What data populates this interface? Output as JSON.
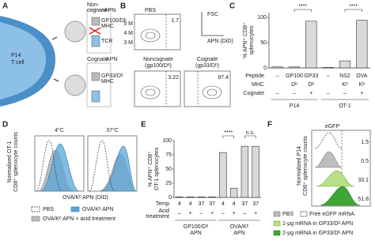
{
  "panel_labels": {
    "a": "A",
    "b": "B",
    "c": "C",
    "d": "D",
    "e": "E",
    "f": "F"
  },
  "panel_a": {
    "cell": [
      "P14",
      "T cell"
    ],
    "noncognate": [
      "Non-",
      "cognate",
      "APN"
    ],
    "gp100": "GP100/Dᵇ",
    "mhc_top": "MHC",
    "tcr": "TCR",
    "cognate": [
      "Cognate",
      "APN"
    ],
    "gp33": "GP33/Dᵇ",
    "mhc_bottom": "MHC"
  },
  "panel_b": {
    "pbs": "PBS",
    "pbs_gate": 1.7,
    "fsc": "FSC",
    "apn": "APN (DiD)",
    "yticks": [
      "5 M",
      "4 M",
      "3 M"
    ],
    "noncognate": [
      "Noncognate",
      "(gp100/Dᵇ)"
    ],
    "noncognate_gate": 3.22,
    "cognate": [
      "Cognate",
      "(gp33/Dᵇ)"
    ],
    "cognate_gate": 97.4
  },
  "panel_d": {
    "ylabel": [
      "Normalized OT-1",
      "CD8⁺ splenocyte counts"
    ],
    "xlabel": "OVA/Kᵇ APN (DiD)",
    "titles": [
      "4°C",
      "37°C"
    ],
    "legend": [
      "PBS",
      "OVA/Kᵇ APN",
      "OVA/Kᵇ APN + acid treatment"
    ]
  },
  "panel_f": {
    "ylabel": [
      "Normalized P14",
      "CD8⁺ splenocyte counts"
    ],
    "xlabel": "eGFP",
    "gates": [
      1.5,
      0.5,
      33.1,
      51.8
    ],
    "legend": [
      "PBS",
      "Free eGFP mRNA",
      "1-μg mRNA in GP33/Dᵇ APN",
      "2-μg mRNA in GP33/Dᵇ APN"
    ]
  },
  "chart_data": [
    {
      "type": "bar",
      "ylabel": [
        "% APN⁺ CD8⁺",
        "splenocytes"
      ],
      "categories": [
        "–",
        "GP100",
        "GP33",
        "–",
        "NS2",
        "OVA"
      ],
      "values": [
        2,
        2,
        93,
        1,
        14,
        95
      ],
      "color": "#d9d9d9",
      "ylim": [
        0,
        110
      ],
      "yticks": [
        0,
        50,
        100
      ],
      "row_labels": [
        "Peptide",
        "MHC",
        "Cognate"
      ],
      "mhc": [
        null,
        "Dᵇ",
        "Dᵇ",
        null,
        "Kᵇ",
        "Kᵇ"
      ],
      "cognate": [
        "–",
        "–",
        "+",
        "–",
        "–",
        "+"
      ],
      "groups": [
        [
          "P14"
        ],
        [
          "OT-1"
        ]
      ],
      "significance": [
        "****",
        "****"
      ]
    },
    {
      "type": "bar",
      "ylabel": [
        "% APN⁺ CD8⁺",
        "OT-1 splenocytes"
      ],
      "values": [
        1,
        1,
        1,
        1,
        79,
        16,
        90,
        90
      ],
      "color": "#d9d9d9",
      "ylim": [
        0,
        100
      ],
      "yticks": [
        0,
        25,
        50,
        75,
        100
      ],
      "row_labels": [
        "Temp",
        "Acid",
        "treatment"
      ],
      "temp": [
        4,
        4,
        37,
        37,
        4,
        4,
        37,
        37
      ],
      "acid": [
        "–",
        "+",
        "–",
        "+",
        "–",
        "+",
        "–",
        "+"
      ],
      "groups": [
        [
          "GP100/Dᵇ",
          "APN"
        ],
        [
          "OVA/Kᵇ",
          "APN"
        ]
      ],
      "significance": [
        "****",
        "n.s."
      ]
    }
  ]
}
